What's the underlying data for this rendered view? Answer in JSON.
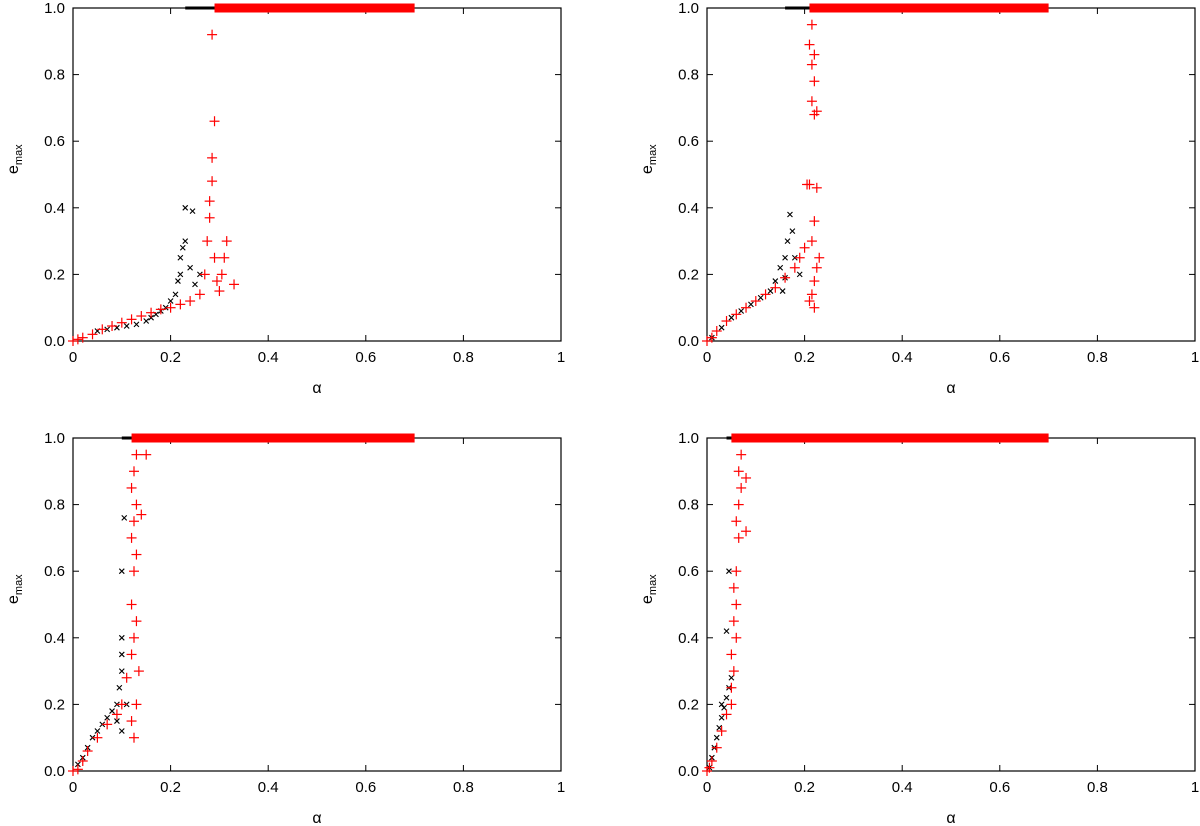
{
  "chart_data": [
    {
      "type": "scatter",
      "xlabel": "α",
      "ylabel": "e",
      "ylabel_sub": "max",
      "xlim": [
        0,
        1
      ],
      "ylim": [
        0,
        1.0
      ],
      "xticks": [
        "0",
        "0.2",
        "0.4",
        "0.6",
        "0.8",
        "1"
      ],
      "yticks": [
        "0.0",
        "0.2",
        "0.4",
        "0.6",
        "0.8",
        "1.0"
      ],
      "grid": false,
      "legend": "none",
      "series": [
        {
          "marker": "x",
          "color": "#000000",
          "band": [
            0.23,
            0.4
          ],
          "points": [
            [
              0.05,
              0.03
            ],
            [
              0.07,
              0.035
            ],
            [
              0.09,
              0.04
            ],
            [
              0.11,
              0.045
            ],
            [
              0.13,
              0.05
            ],
            [
              0.15,
              0.06
            ],
            [
              0.16,
              0.07
            ],
            [
              0.17,
              0.08
            ],
            [
              0.18,
              0.09
            ],
            [
              0.19,
              0.1
            ],
            [
              0.2,
              0.12
            ],
            [
              0.21,
              0.14
            ],
            [
              0.22,
              0.2
            ],
            [
              0.22,
              0.25
            ],
            [
              0.23,
              0.3
            ],
            [
              0.225,
              0.28
            ],
            [
              0.215,
              0.18
            ],
            [
              0.23,
              0.4
            ],
            [
              0.245,
              0.39
            ],
            [
              0.24,
              0.22
            ],
            [
              0.25,
              0.17
            ],
            [
              0.26,
              0.2
            ]
          ]
        },
        {
          "marker": "+",
          "color": "#ff0000",
          "band": [
            0.29,
            0.7
          ],
          "points": [
            [
              0.0,
              0.0
            ],
            [
              0.01,
              0.005
            ],
            [
              0.02,
              0.01
            ],
            [
              0.04,
              0.02
            ],
            [
              0.06,
              0.035
            ],
            [
              0.08,
              0.045
            ],
            [
              0.1,
              0.055
            ],
            [
              0.12,
              0.065
            ],
            [
              0.14,
              0.075
            ],
            [
              0.16,
              0.085
            ],
            [
              0.18,
              0.095
            ],
            [
              0.2,
              0.1
            ],
            [
              0.22,
              0.11
            ],
            [
              0.24,
              0.12
            ],
            [
              0.26,
              0.14
            ],
            [
              0.27,
              0.2
            ],
            [
              0.275,
              0.3
            ],
            [
              0.28,
              0.37
            ],
            [
              0.28,
              0.42
            ],
            [
              0.285,
              0.48
            ],
            [
              0.285,
              0.55
            ],
            [
              0.29,
              0.66
            ],
            [
              0.285,
              0.92
            ],
            [
              0.29,
              0.25
            ],
            [
              0.295,
              0.18
            ],
            [
              0.3,
              0.15
            ],
            [
              0.305,
              0.2
            ],
            [
              0.31,
              0.25
            ],
            [
              0.315,
              0.3
            ],
            [
              0.33,
              0.17
            ]
          ]
        }
      ]
    },
    {
      "type": "scatter",
      "xlabel": "α",
      "ylabel": "e",
      "ylabel_sub": "max",
      "xlim": [
        0,
        1
      ],
      "ylim": [
        0,
        1.0
      ],
      "xticks": [
        "0",
        "0.2",
        "0.4",
        "0.6",
        "0.8",
        "1"
      ],
      "yticks": [
        "0.0",
        "0.2",
        "0.4",
        "0.6",
        "0.8",
        "1.0"
      ],
      "grid": false,
      "legend": "none",
      "series": [
        {
          "marker": "x",
          "color": "#000000",
          "band": [
            0.16,
            0.35
          ],
          "points": [
            [
              0.01,
              0.01
            ],
            [
              0.03,
              0.04
            ],
            [
              0.05,
              0.07
            ],
            [
              0.07,
              0.09
            ],
            [
              0.09,
              0.11
            ],
            [
              0.11,
              0.13
            ],
            [
              0.13,
              0.15
            ],
            [
              0.14,
              0.18
            ],
            [
              0.15,
              0.22
            ],
            [
              0.16,
              0.25
            ],
            [
              0.165,
              0.3
            ],
            [
              0.17,
              0.38
            ],
            [
              0.175,
              0.33
            ],
            [
              0.16,
              0.19
            ],
            [
              0.155,
              0.15
            ],
            [
              0.18,
              0.25
            ],
            [
              0.19,
              0.2
            ]
          ]
        },
        {
          "marker": "+",
          "color": "#ff0000",
          "band": [
            0.21,
            0.7
          ],
          "points": [
            [
              0.0,
              0.0
            ],
            [
              0.01,
              0.01
            ],
            [
              0.02,
              0.03
            ],
            [
              0.04,
              0.06
            ],
            [
              0.06,
              0.08
            ],
            [
              0.08,
              0.1
            ],
            [
              0.1,
              0.12
            ],
            [
              0.12,
              0.14
            ],
            [
              0.14,
              0.16
            ],
            [
              0.16,
              0.19
            ],
            [
              0.18,
              0.22
            ],
            [
              0.19,
              0.25
            ],
            [
              0.2,
              0.28
            ],
            [
              0.205,
              0.47
            ],
            [
              0.21,
              0.47
            ],
            [
              0.215,
              0.3
            ],
            [
              0.22,
              0.36
            ],
            [
              0.225,
              0.46
            ],
            [
              0.21,
              0.12
            ],
            [
              0.215,
              0.14
            ],
            [
              0.22,
              0.18
            ],
            [
              0.225,
              0.22
            ],
            [
              0.23,
              0.25
            ],
            [
              0.22,
              0.68
            ],
            [
              0.215,
              0.72
            ],
            [
              0.22,
              0.78
            ],
            [
              0.215,
              0.83
            ],
            [
              0.22,
              0.86
            ],
            [
              0.21,
              0.89
            ],
            [
              0.215,
              0.95
            ],
            [
              0.225,
              0.69
            ],
            [
              0.22,
              0.1
            ]
          ]
        }
      ]
    },
    {
      "type": "scatter",
      "xlabel": "α",
      "ylabel": "e",
      "ylabel_sub": "max",
      "xlim": [
        0,
        1
      ],
      "ylim": [
        0,
        1.0
      ],
      "xticks": [
        "0",
        "0.2",
        "0.4",
        "0.6",
        "0.8",
        "1"
      ],
      "yticks": [
        "0.0",
        "0.2",
        "0.4",
        "0.6",
        "0.8",
        "1.0"
      ],
      "grid": false,
      "legend": "none",
      "series": [
        {
          "marker": "x",
          "color": "#000000",
          "band": [
            0.1,
            0.31
          ],
          "points": [
            [
              0.01,
              0.02
            ],
            [
              0.02,
              0.04
            ],
            [
              0.03,
              0.07
            ],
            [
              0.04,
              0.1
            ],
            [
              0.05,
              0.12
            ],
            [
              0.06,
              0.14
            ],
            [
              0.07,
              0.16
            ],
            [
              0.08,
              0.18
            ],
            [
              0.09,
              0.2
            ],
            [
              0.095,
              0.25
            ],
            [
              0.1,
              0.3
            ],
            [
              0.1,
              0.35
            ],
            [
              0.1,
              0.4
            ],
            [
              0.1,
              0.6
            ],
            [
              0.105,
              0.76
            ],
            [
              0.11,
              0.2
            ],
            [
              0.09,
              0.15
            ],
            [
              0.1,
              0.12
            ]
          ]
        },
        {
          "marker": "+",
          "color": "#ff0000",
          "band": [
            0.12,
            0.7
          ],
          "points": [
            [
              0.0,
              0.0
            ],
            [
              0.01,
              0.005
            ],
            [
              0.02,
              0.03
            ],
            [
              0.03,
              0.06
            ],
            [
              0.05,
              0.1
            ],
            [
              0.07,
              0.14
            ],
            [
              0.09,
              0.17
            ],
            [
              0.1,
              0.2
            ],
            [
              0.11,
              0.28
            ],
            [
              0.12,
              0.35
            ],
            [
              0.125,
              0.4
            ],
            [
              0.13,
              0.45
            ],
            [
              0.12,
              0.5
            ],
            [
              0.125,
              0.6
            ],
            [
              0.13,
              0.65
            ],
            [
              0.12,
              0.7
            ],
            [
              0.125,
              0.75
            ],
            [
              0.13,
              0.8
            ],
            [
              0.12,
              0.85
            ],
            [
              0.125,
              0.9
            ],
            [
              0.13,
              0.95
            ],
            [
              0.14,
              0.77
            ],
            [
              0.15,
              0.95
            ],
            [
              0.12,
              0.15
            ],
            [
              0.125,
              0.1
            ],
            [
              0.13,
              0.2
            ],
            [
              0.135,
              0.3
            ]
          ]
        }
      ]
    },
    {
      "type": "scatter",
      "xlabel": "α",
      "ylabel": "e",
      "ylabel_sub": "max",
      "xlim": [
        0,
        1
      ],
      "ylim": [
        0,
        1.0
      ],
      "xticks": [
        "0",
        "0.2",
        "0.4",
        "0.6",
        "0.8",
        "1"
      ],
      "yticks": [
        "0.0",
        "0.2",
        "0.4",
        "0.6",
        "0.8",
        "1.0"
      ],
      "grid": false,
      "legend": "none",
      "series": [
        {
          "marker": "x",
          "color": "#000000",
          "band": [
            0.04,
            0.31
          ],
          "points": [
            [
              0.005,
              0.01
            ],
            [
              0.01,
              0.04
            ],
            [
              0.015,
              0.07
            ],
            [
              0.02,
              0.1
            ],
            [
              0.025,
              0.13
            ],
            [
              0.03,
              0.16
            ],
            [
              0.035,
              0.19
            ],
            [
              0.04,
              0.22
            ],
            [
              0.045,
              0.25
            ],
            [
              0.05,
              0.28
            ],
            [
              0.045,
              0.6
            ],
            [
              0.04,
              0.42
            ],
            [
              0.03,
              0.2
            ]
          ]
        },
        {
          "marker": "+",
          "color": "#ff0000",
          "band": [
            0.05,
            0.7
          ],
          "points": [
            [
              0.0,
              0.0
            ],
            [
              0.005,
              0.01
            ],
            [
              0.01,
              0.03
            ],
            [
              0.02,
              0.07
            ],
            [
              0.03,
              0.12
            ],
            [
              0.04,
              0.17
            ],
            [
              0.05,
              0.25
            ],
            [
              0.055,
              0.3
            ],
            [
              0.05,
              0.35
            ],
            [
              0.055,
              0.45
            ],
            [
              0.06,
              0.5
            ],
            [
              0.055,
              0.55
            ],
            [
              0.06,
              0.6
            ],
            [
              0.065,
              0.7
            ],
            [
              0.06,
              0.75
            ],
            [
              0.065,
              0.8
            ],
            [
              0.07,
              0.85
            ],
            [
              0.065,
              0.9
            ],
            [
              0.07,
              0.95
            ],
            [
              0.08,
              0.72
            ],
            [
              0.08,
              0.88
            ],
            [
              0.06,
              0.4
            ],
            [
              0.05,
              0.2
            ]
          ]
        }
      ]
    }
  ]
}
